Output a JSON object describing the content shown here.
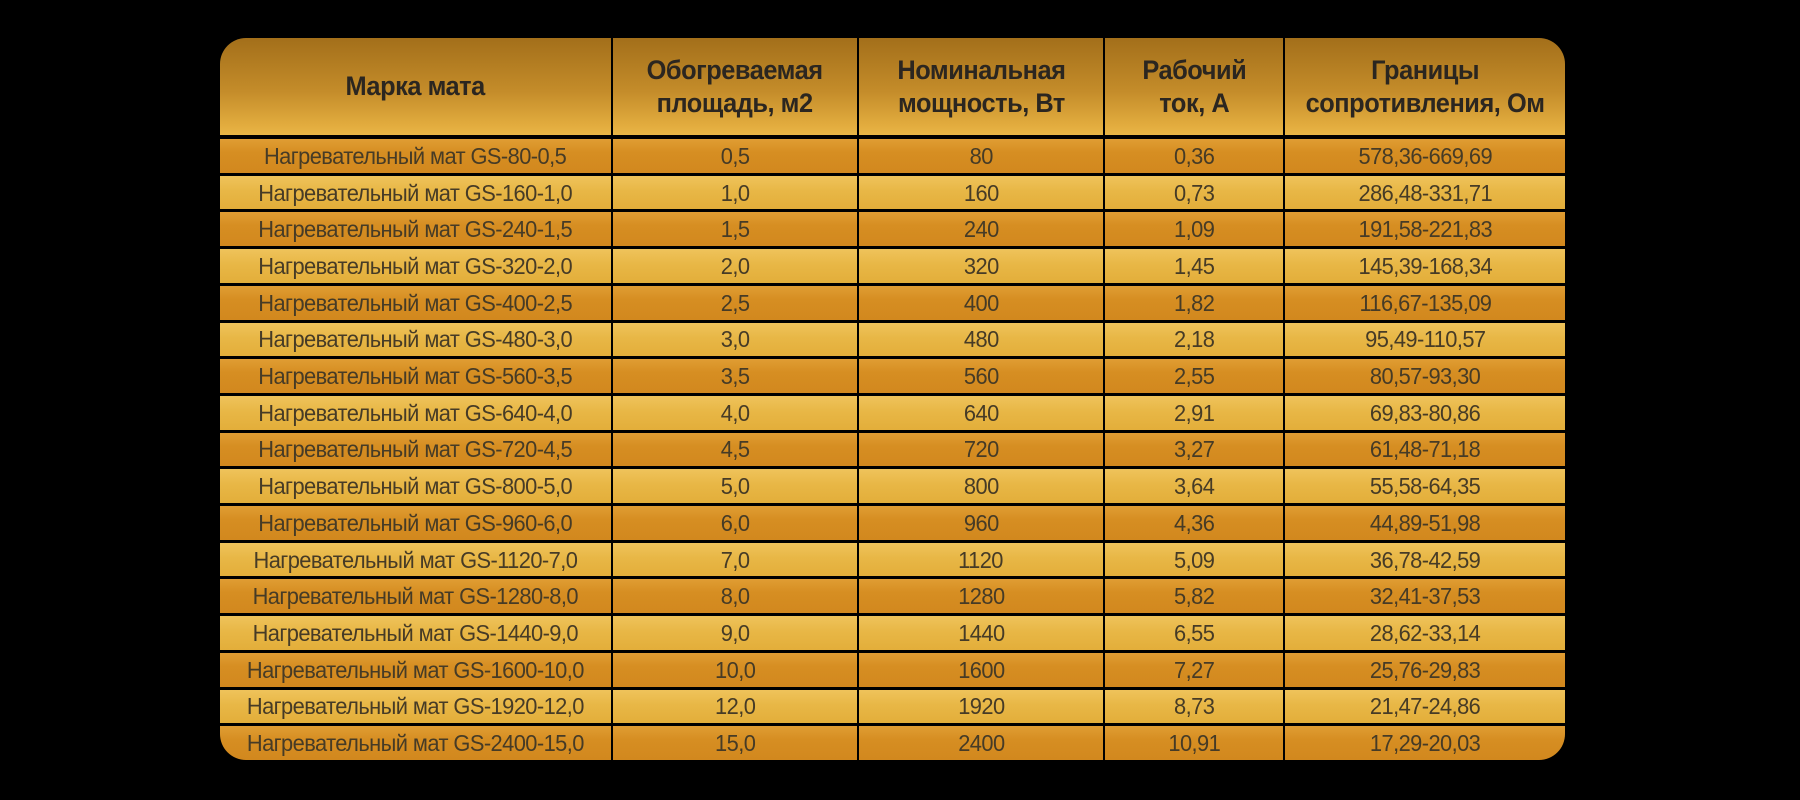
{
  "title": "Таблица характеристик нагревательных матов GS",
  "colors": {
    "page_background": "#000000",
    "header_gradient_top": "#a36f1a",
    "header_gradient_bottom": "#e8b546",
    "row_dark": "#d58d21",
    "row_light": "#e9ba4a",
    "border": "#000000",
    "header_text": "#2b2620",
    "cell_text": "#463b26"
  },
  "chart_data": {
    "type": "table",
    "title": "",
    "columns": [
      "Марка мата",
      "Обогреваемая\nплощадь, м2",
      "Номинальная\nмощность, Вт",
      "Рабочий\nток, А",
      "Границы\nсопротивления, Ом"
    ],
    "rows": [
      [
        "Нагревательный мат GS-80-0,5",
        "0,5",
        "80",
        "0,36",
        "578,36-669,69"
      ],
      [
        "Нагревательный мат GS-160-1,0",
        "1,0",
        "160",
        "0,73",
        "286,48-331,71"
      ],
      [
        "Нагревательный мат GS-240-1,5",
        "1,5",
        "240",
        "1,09",
        "191,58-221,83"
      ],
      [
        "Нагревательный мат GS-320-2,0",
        "2,0",
        "320",
        "1,45",
        "145,39-168,34"
      ],
      [
        "Нагревательный мат GS-400-2,5",
        "2,5",
        "400",
        "1,82",
        "116,67-135,09"
      ],
      [
        "Нагревательный мат GS-480-3,0",
        "3,0",
        "480",
        "2,18",
        "95,49-110,57"
      ],
      [
        "Нагревательный мат GS-560-3,5",
        "3,5",
        "560",
        "2,55",
        "80,57-93,30"
      ],
      [
        "Нагревательный мат GS-640-4,0",
        "4,0",
        "640",
        "2,91",
        "69,83-80,86"
      ],
      [
        "Нагревательный мат GS-720-4,5",
        "4,5",
        "720",
        "3,27",
        "61,48-71,18"
      ],
      [
        "Нагревательный мат GS-800-5,0",
        "5,0",
        "800",
        "3,64",
        "55,58-64,35"
      ],
      [
        "Нагревательный мат GS-960-6,0",
        "6,0",
        "960",
        "4,36",
        "44,89-51,98"
      ],
      [
        "Нагревательный мат GS-1120-7,0",
        "7,0",
        "1120",
        "5,09",
        "36,78-42,59"
      ],
      [
        "Нагревательный мат GS-1280-8,0",
        "8,0",
        "1280",
        "5,82",
        "32,41-37,53"
      ],
      [
        "Нагревательный мат GS-1440-9,0",
        "9,0",
        "1440",
        "6,55",
        "28,62-33,14"
      ],
      [
        "Нагревательный мат GS-1600-10,0",
        "10,0",
        "1600",
        "7,27",
        "25,76-29,83"
      ],
      [
        "Нагревательный мат GS-1920-12,0",
        "12,0",
        "1920",
        "8,73",
        "21,47-24,86"
      ],
      [
        "Нагревательный мат GS-2400-15,0",
        "15,0",
        "2400",
        "10,91",
        "17,29-20,03"
      ]
    ],
    "layout_hints": {
      "row_striping": "odd rows dark orange, even rows light gold",
      "grid": "black 2-3px rules between all cells",
      "corner_radius": "rounded outer corners"
    }
  }
}
